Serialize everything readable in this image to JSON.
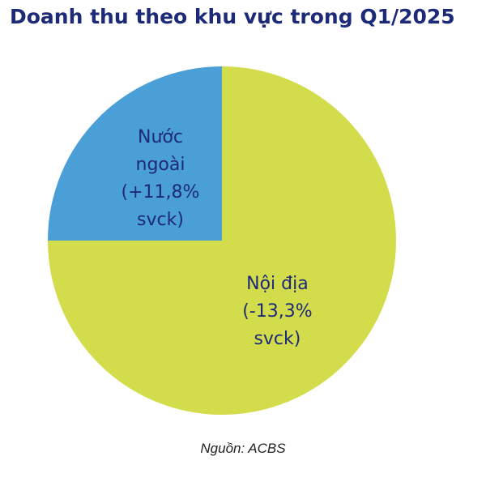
{
  "chart_data": {
    "type": "pie",
    "title": "Doanh thu theo khu vực trong Q1/2025",
    "categories": [
      "Nội địa (-13,3% svck)",
      "Nước ngoài (+11,8% svck)"
    ],
    "values": [
      75,
      25
    ],
    "colors": [
      "#d3dc4b",
      "#4a9fd6"
    ],
    "source": "Nguồn: ACBS"
  }
}
